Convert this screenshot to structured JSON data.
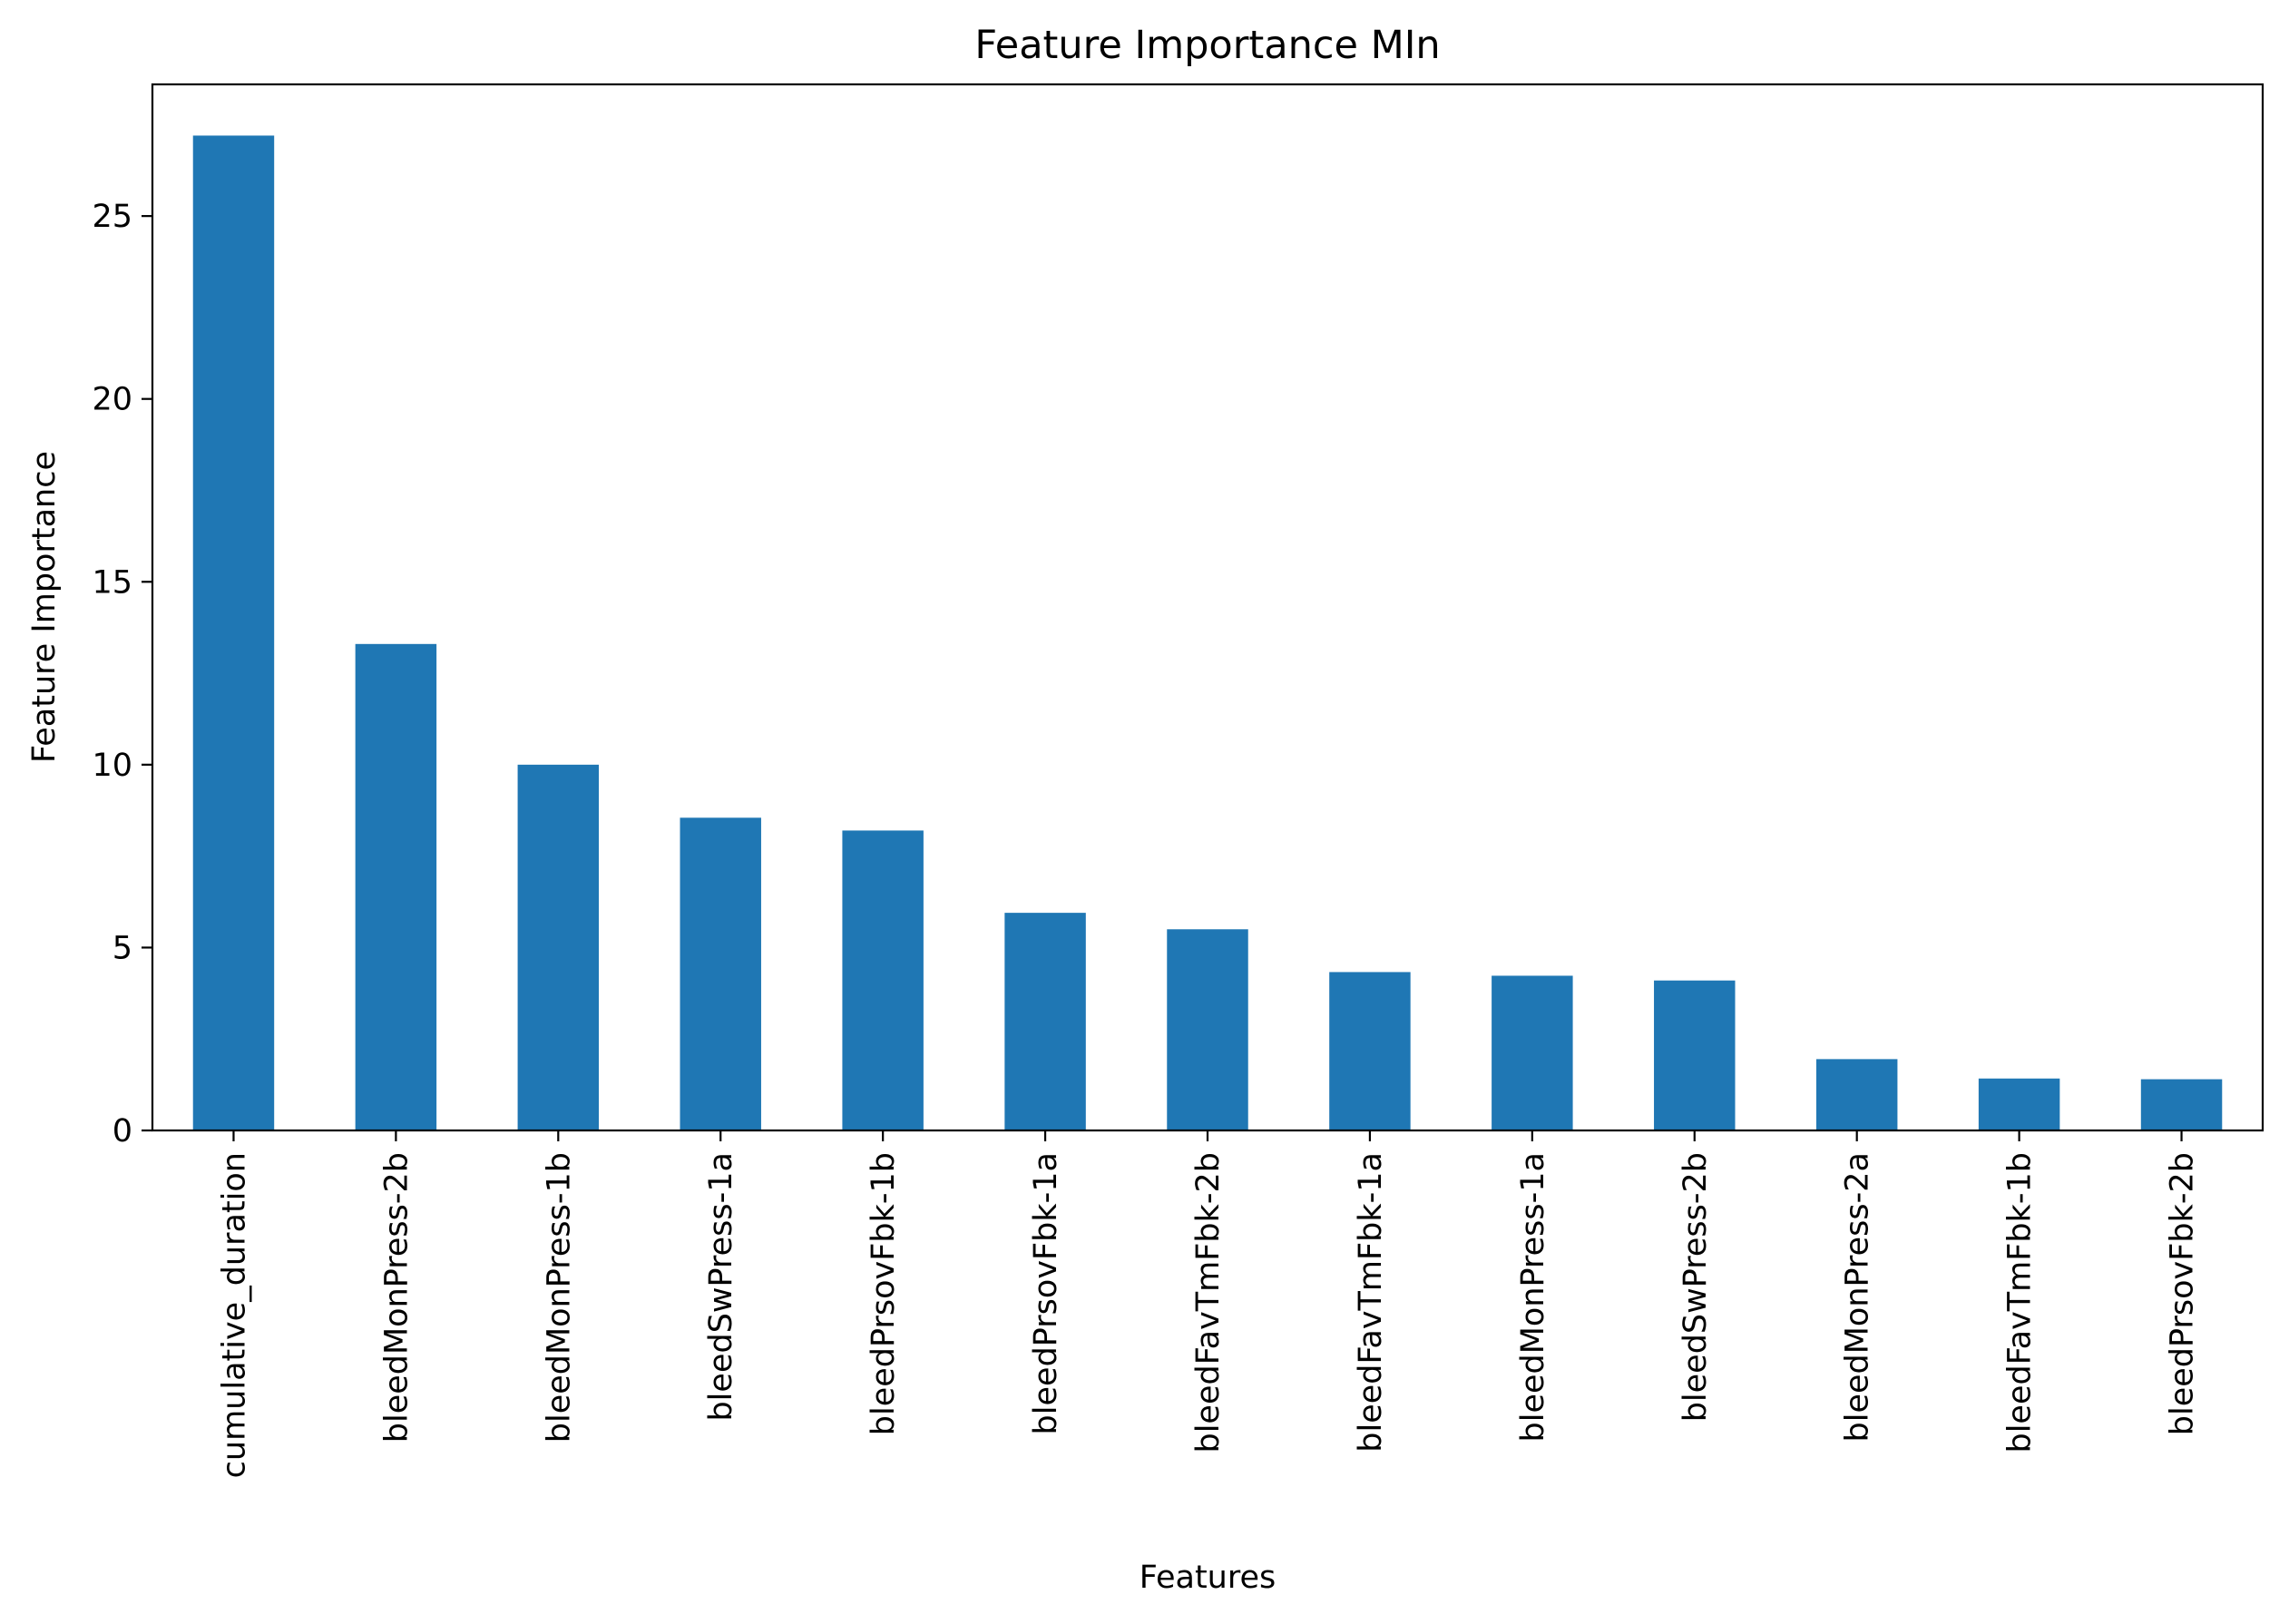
{
  "chart_data": {
    "type": "bar",
    "title": "Feature Importance MIn",
    "xlabel": "Features",
    "ylabel": "Feature Importance",
    "categories": [
      "cumulative_duration",
      "bleedMonPress-2b",
      "bleedMonPress-1b",
      "bleedSwPress-1a",
      "bleedPrsovFbk-1b",
      "bleedPrsovFbk-1a",
      "bleedFavTmFbk-2b",
      "bleedFavTmFbk-1a",
      "bleedMonPress-1a",
      "bleedSwPress-2b",
      "bleedMonPress-2a",
      "bleedFavTmFbk-1b",
      "bleedPrsovFbk-2b"
    ],
    "values": [
      27.2,
      13.3,
      10.0,
      8.55,
      8.2,
      5.95,
      5.5,
      4.33,
      4.23,
      4.1,
      1.95,
      1.42,
      1.4
    ],
    "ylim": [
      0,
      28.6
    ],
    "yticks": [
      0,
      5,
      10,
      15,
      20,
      25
    ],
    "bar_color": "#1f77b4",
    "grid": false,
    "legend": "none"
  }
}
